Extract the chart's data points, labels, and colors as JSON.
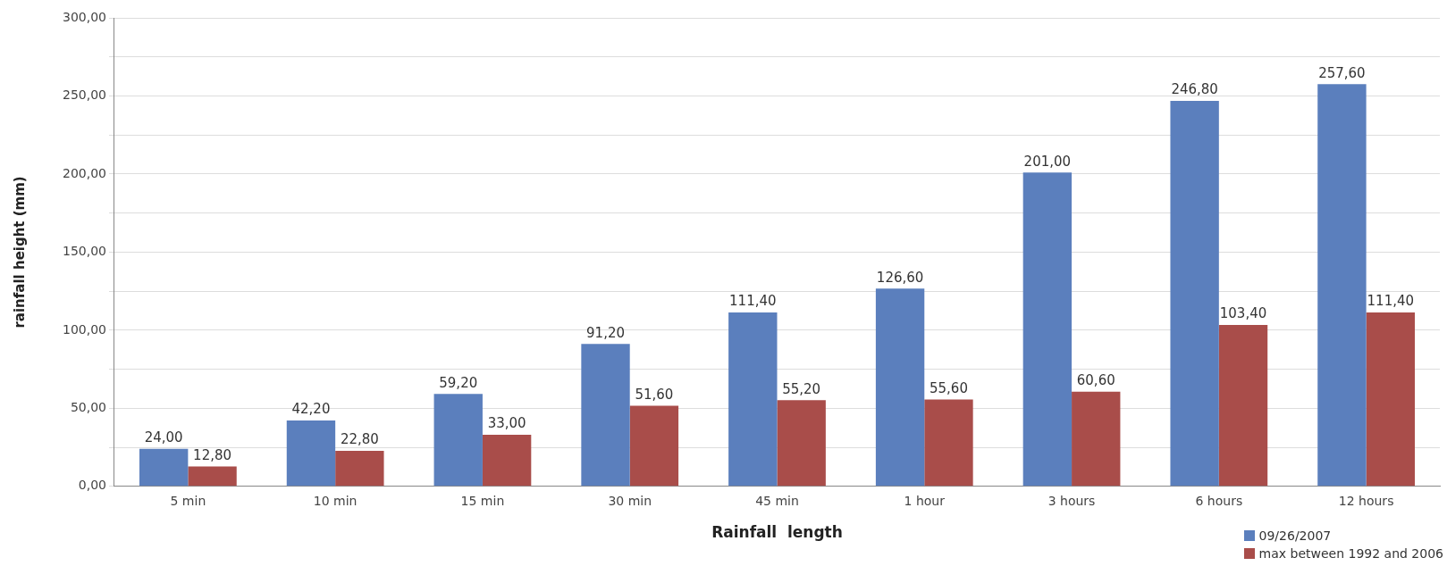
{
  "chart_data": {
    "type": "bar",
    "xlabel": "Rainfall  length",
    "ylabel": "rainfall height (mm)",
    "categories": [
      "5 min",
      "10 min",
      "15 min",
      "30 min",
      "45 min",
      "1 hour",
      "3 hours",
      "6 hours",
      "12 hours"
    ],
    "series": [
      {
        "name": "09/26/2007",
        "color": "#5b7fbd",
        "values": [
          24,
          42.2,
          59.2,
          91.2,
          111.4,
          126.6,
          201,
          246.8,
          257.6
        ],
        "value_labels": [
          "24,00",
          "42,20",
          "59,20",
          "91,20",
          "111,40",
          "126,60",
          "201,00",
          "246,80",
          "257,60"
        ]
      },
      {
        "name": "max between 1992 and 2006",
        "color": "#a94d4a",
        "values": [
          12.8,
          22.8,
          33,
          51.6,
          55.2,
          55.6,
          60.6,
          103.4,
          111.4
        ],
        "value_labels": [
          "12,80",
          "22,80",
          "33,00",
          "51,60",
          "55,20",
          "55,60",
          "60,60",
          "103,40",
          "111,40"
        ]
      }
    ],
    "ylim": [
      0,
      300
    ],
    "yticks": [
      {
        "value": 0,
        "label": "0,00"
      },
      {
        "value": 25,
        "label": null
      },
      {
        "value": 50,
        "label": "50,00"
      },
      {
        "value": 75,
        "label": null
      },
      {
        "value": 100,
        "label": "100,00"
      },
      {
        "value": 125,
        "label": null
      },
      {
        "value": 150,
        "label": "150,00"
      },
      {
        "value": 175,
        "label": null
      },
      {
        "value": 200,
        "label": "200,00"
      },
      {
        "value": 225,
        "label": null
      },
      {
        "value": 250,
        "label": "250,00"
      },
      {
        "value": 275,
        "label": null
      },
      {
        "value": 300,
        "label": "300,00"
      }
    ],
    "grid": "y",
    "legend": "bottom right"
  }
}
